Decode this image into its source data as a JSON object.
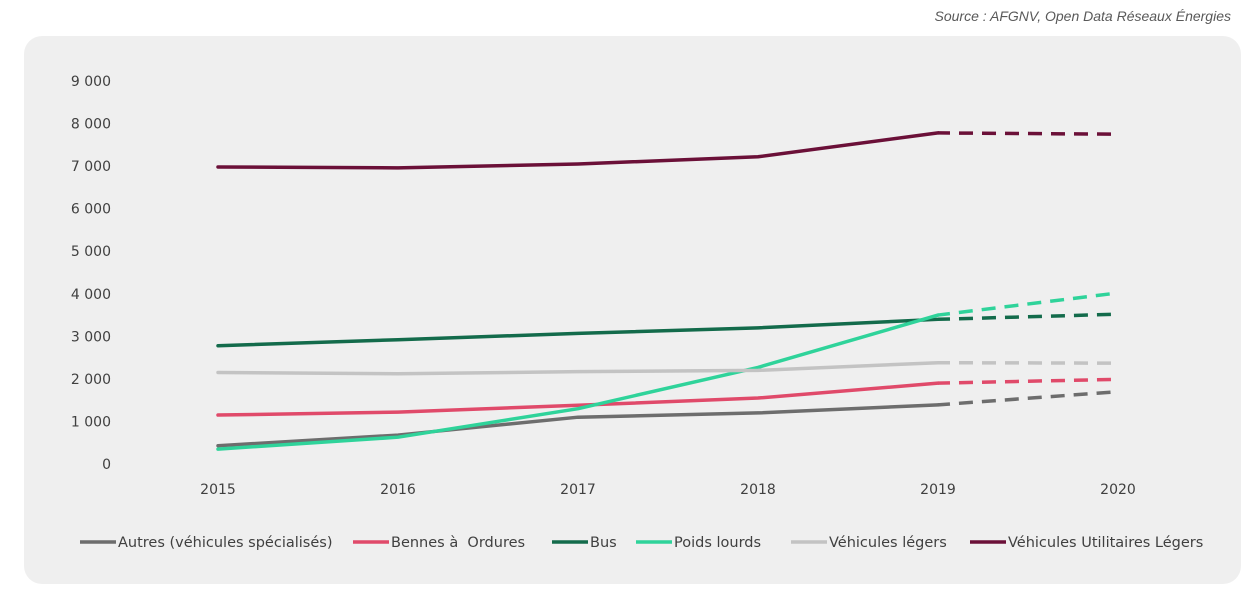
{
  "source": "Source : AFGNV, Open Data Réseaux Énergies",
  "chart_data": {
    "type": "line",
    "x": [
      2015,
      2016,
      2017,
      2018,
      2019,
      2020
    ],
    "x_tick_labels": [
      "2015",
      "2016",
      "2017",
      "2018",
      "2019",
      "2020"
    ],
    "y_tick_labels": [
      "0",
      "1 000",
      "2 000",
      "3 000",
      "4 000",
      "5 000",
      "6 000",
      "7 000",
      "8 000",
      "9 000"
    ],
    "ylim": [
      0,
      9000
    ],
    "grid": false,
    "legend_position": "bottom",
    "projection_note": "dashed segment from 2019 to 2020",
    "series": [
      {
        "name": "Autres (véhicules spécialisés)",
        "color": "#6d6d6d",
        "values": [
          430,
          680,
          1100,
          1200,
          1390,
          1700
        ]
      },
      {
        "name": "Bennes à  Ordures",
        "color": "#e04a6a",
        "values": [
          1150,
          1220,
          1380,
          1550,
          1900,
          1990
        ]
      },
      {
        "name": "Bus",
        "color": "#136b4b",
        "values": [
          2780,
          2920,
          3070,
          3200,
          3400,
          3520
        ]
      },
      {
        "name": "Poids lourds",
        "color": "#2fd39a",
        "values": [
          350,
          630,
          1300,
          2270,
          3500,
          4020
        ]
      },
      {
        "name": "Véhicules légers",
        "color": "#c3c3c3",
        "values": [
          2150,
          2120,
          2170,
          2200,
          2380,
          2370
        ]
      },
      {
        "name": "Véhicules Utilitaires Légers",
        "color": "#6b1038",
        "values": [
          6980,
          6960,
          7050,
          7220,
          7780,
          7750
        ]
      }
    ]
  }
}
